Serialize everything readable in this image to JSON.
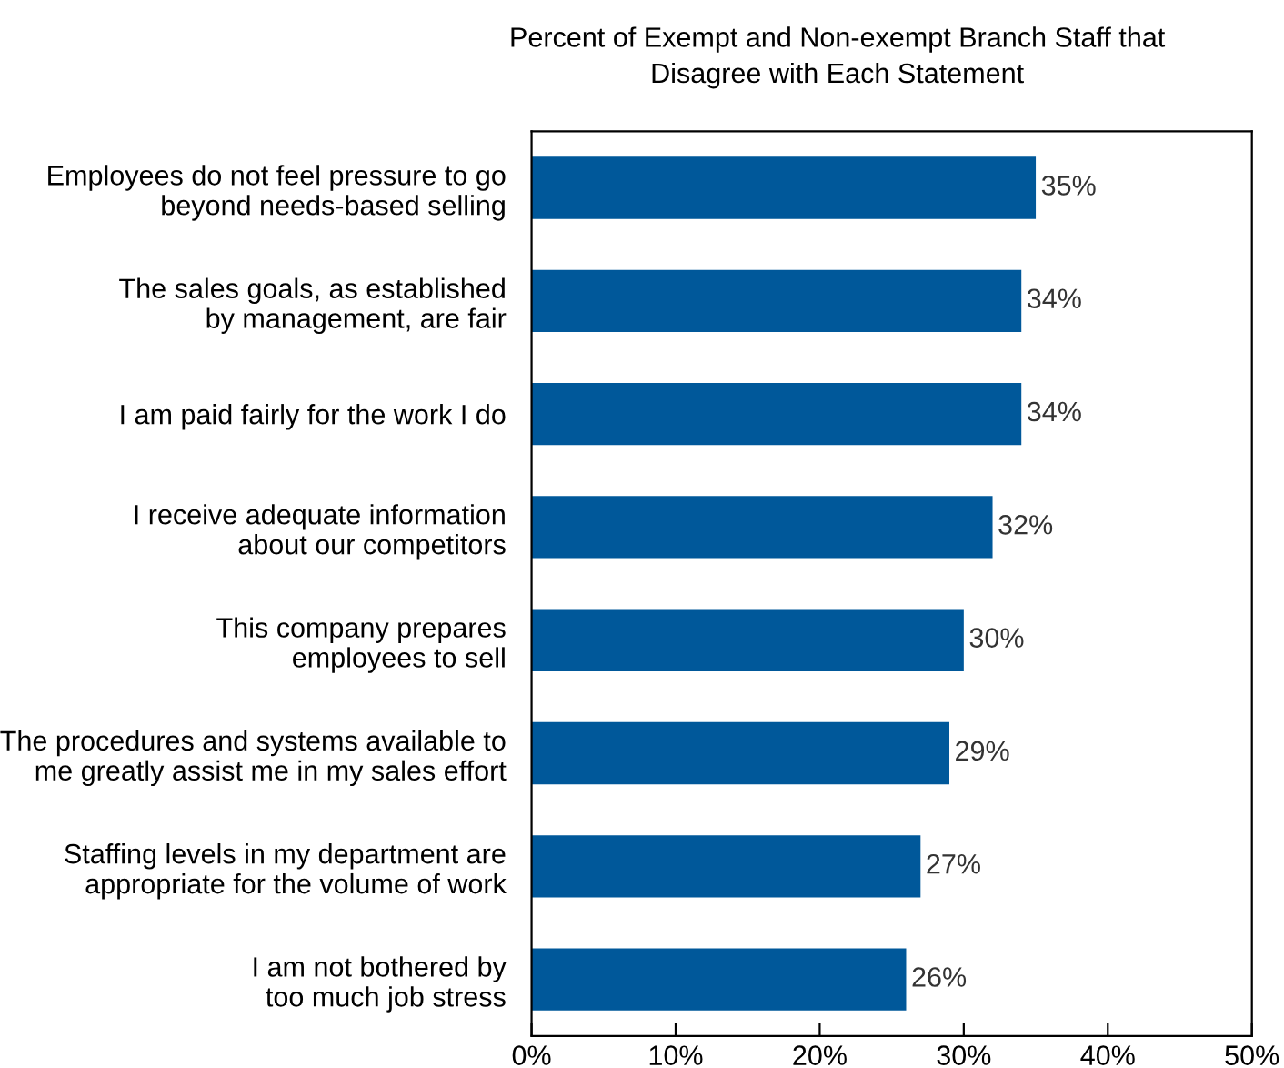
{
  "chart_data": {
    "type": "bar",
    "orientation": "horizontal",
    "title": "Percent of Exempt and Non-exempt Branch Staff that\nDisagree with Each Statement",
    "categories": [
      "Employees do not feel pressure to go\nbeyond needs-based selling",
      "The sales goals, as established\nby management, are fair",
      "I am paid fairly for the work I do",
      "I receive adequate information\nabout our competitors",
      "This company prepares\nemployees to sell",
      "The procedures and systems available to\nme greatly assist me in my sales effort",
      "Staffing levels in my department are\nappropriate for the volume of work",
      "I am not bothered by\ntoo much job stress"
    ],
    "values": [
      35,
      34,
      34,
      32,
      30,
      29,
      27,
      26
    ],
    "value_labels": [
      "35%",
      "34%",
      "34%",
      "32%",
      "30%",
      "29%",
      "27%",
      "26%"
    ],
    "color": "#00589a",
    "xlim": [
      0,
      50
    ],
    "xticks": [
      {
        "value": 0,
        "label": "0%"
      },
      {
        "value": 10,
        "label": "10%"
      },
      {
        "value": 20,
        "label": "20%"
      },
      {
        "value": 30,
        "label": "30%"
      },
      {
        "value": 40,
        "label": "40%"
      },
      {
        "value": 50,
        "label": "50%"
      }
    ],
    "grid": false
  }
}
